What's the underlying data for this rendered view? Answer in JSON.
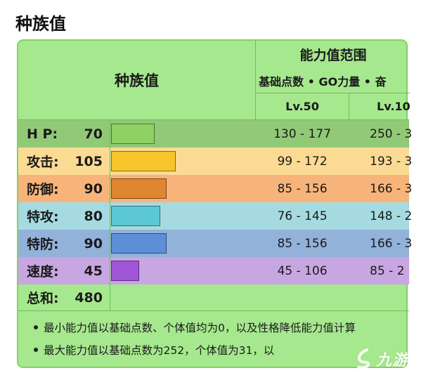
{
  "page": {
    "title": "种族值"
  },
  "table": {
    "header_left": "种族值",
    "range_title": "能力值范围",
    "range_subtitle": "基础点数 • GO力量 • 奋",
    "level_50": "Lv.50",
    "level_100": "Lv.10",
    "stats": [
      {
        "name": "H P:",
        "value": "70",
        "lv50": "130 - 177",
        "lv100": "250 - 3",
        "color": "#8fd164",
        "row_bg": "#91c977",
        "fraction": 0.28
      },
      {
        "name": "攻击:",
        "value": "105",
        "lv50": "99 - 172",
        "lv100": "193 - 3",
        "color": "#f5c52b",
        "row_bg": "#fbdb94",
        "fraction": 0.42
      },
      {
        "name": "防御:",
        "value": "90",
        "lv50": "85 - 156",
        "lv100": "166 - 3",
        "color": "#e08530",
        "row_bg": "#f7b47a",
        "fraction": 0.36
      },
      {
        "name": "特攻:",
        "value": "80",
        "lv50": "76 - 145",
        "lv100": "148 - 2",
        "color": "#5bc8d4",
        "row_bg": "#a5dbe0",
        "fraction": 0.32
      },
      {
        "name": "特防:",
        "value": "90",
        "lv50": "85 - 156",
        "lv100": "166 - 3",
        "color": "#5c8fd6",
        "row_bg": "#93b2da",
        "fraction": 0.36
      },
      {
        "name": "速度:",
        "value": "45",
        "lv50": "45 - 106",
        "lv100": "85 - 2",
        "color": "#a056d6",
        "row_bg": "#c8a6e2",
        "fraction": 0.18
      }
    ],
    "total": {
      "name": "总和:",
      "value": "480"
    }
  },
  "notes": [
    "最小能力值以基础点数、个体值均为0，以及性格降低能力值计算",
    "最大能力值以基础点数为252，个体值为31，以"
  ],
  "watermark": {
    "text": "九游"
  }
}
